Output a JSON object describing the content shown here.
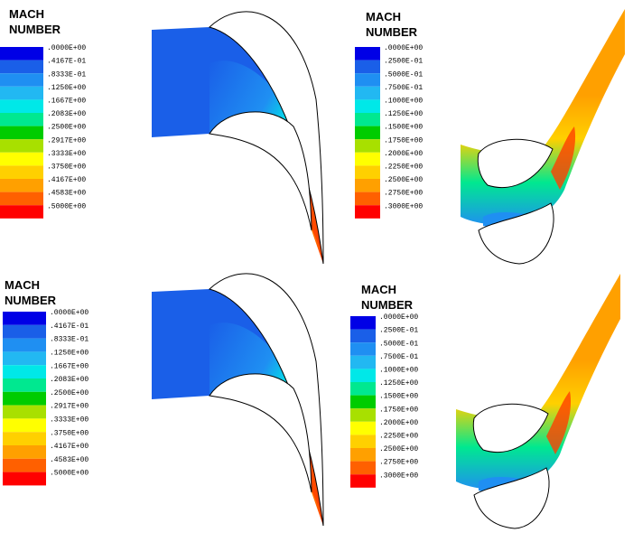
{
  "panels": [
    {
      "title_lines": [
        "MACH",
        "NUMBER"
      ],
      "legend": {
        "labels": [
          ".0000E+00",
          ".4167E-01",
          ".8333E-01",
          ".1250E+00",
          ".1667E+00",
          ".2083E+00",
          ".2500E+00",
          ".2917E+00",
          ".3333E+00",
          ".3750E+00",
          ".4167E+00",
          ".4583E+00",
          ".5000E+00"
        ],
        "colors": [
          "#0000e6",
          "#1a5fe8",
          "#1f8ff2",
          "#22b8f2",
          "#00e8e8",
          "#00e890",
          "#00cc00",
          "#a8e000",
          "#ffff00",
          "#ffd000",
          "#ffa000",
          "#ff6000",
          "#ff0000"
        ]
      }
    },
    {
      "title_lines": [
        "MACH",
        "NUMBER"
      ],
      "legend": {
        "labels": [
          ".0000E+00",
          ".2500E-01",
          ".5000E-01",
          ".7500E-01",
          ".1000E+00",
          ".1250E+00",
          ".1500E+00",
          ".1750E+00",
          ".2000E+00",
          ".2250E+00",
          ".2500E+00",
          ".2750E+00",
          ".3000E+00"
        ],
        "colors": [
          "#0000e6",
          "#1a5fe8",
          "#1f8ff2",
          "#22b8f2",
          "#00e8e8",
          "#00e890",
          "#00cc00",
          "#a8e000",
          "#ffff00",
          "#ffd000",
          "#ffa000",
          "#ff6000",
          "#ff0000"
        ]
      }
    },
    {
      "title_lines": [
        "MACH",
        "NUMBER"
      ],
      "legend": {
        "labels": [
          ".0000E+00",
          ".4167E-01",
          ".8333E-01",
          ".1250E+00",
          ".1667E+00",
          ".2083E+00",
          ".2500E+00",
          ".2917E+00",
          ".3333E+00",
          ".3750E+00",
          ".4167E+00",
          ".4583E+00",
          ".5000E+00"
        ],
        "colors": [
          "#0000e6",
          "#1a5fe8",
          "#1f8ff2",
          "#22b8f2",
          "#00e8e8",
          "#00e890",
          "#00cc00",
          "#a8e000",
          "#ffff00",
          "#ffd000",
          "#ffa000",
          "#ff6000",
          "#ff0000"
        ]
      }
    },
    {
      "title_lines": [
        "MACH",
        "NUMBER"
      ],
      "legend": {
        "labels": [
          ".0000E+00",
          ".2500E-01",
          ".5000E-01",
          ".7500E-01",
          ".1000E+00",
          ".1250E+00",
          ".1500E+00",
          ".1750E+00",
          ".2000E+00",
          ".2250E+00",
          ".2500E+00",
          ".2750E+00",
          ".3000E+00"
        ],
        "colors": [
          "#0000e6",
          "#1a5fe8",
          "#1f8ff2",
          "#22b8f2",
          "#00e8e8",
          "#00e890",
          "#00cc00",
          "#a8e000",
          "#ffff00",
          "#ffd000",
          "#ffa000",
          "#ff6000",
          "#ff0000"
        ]
      }
    }
  ]
}
